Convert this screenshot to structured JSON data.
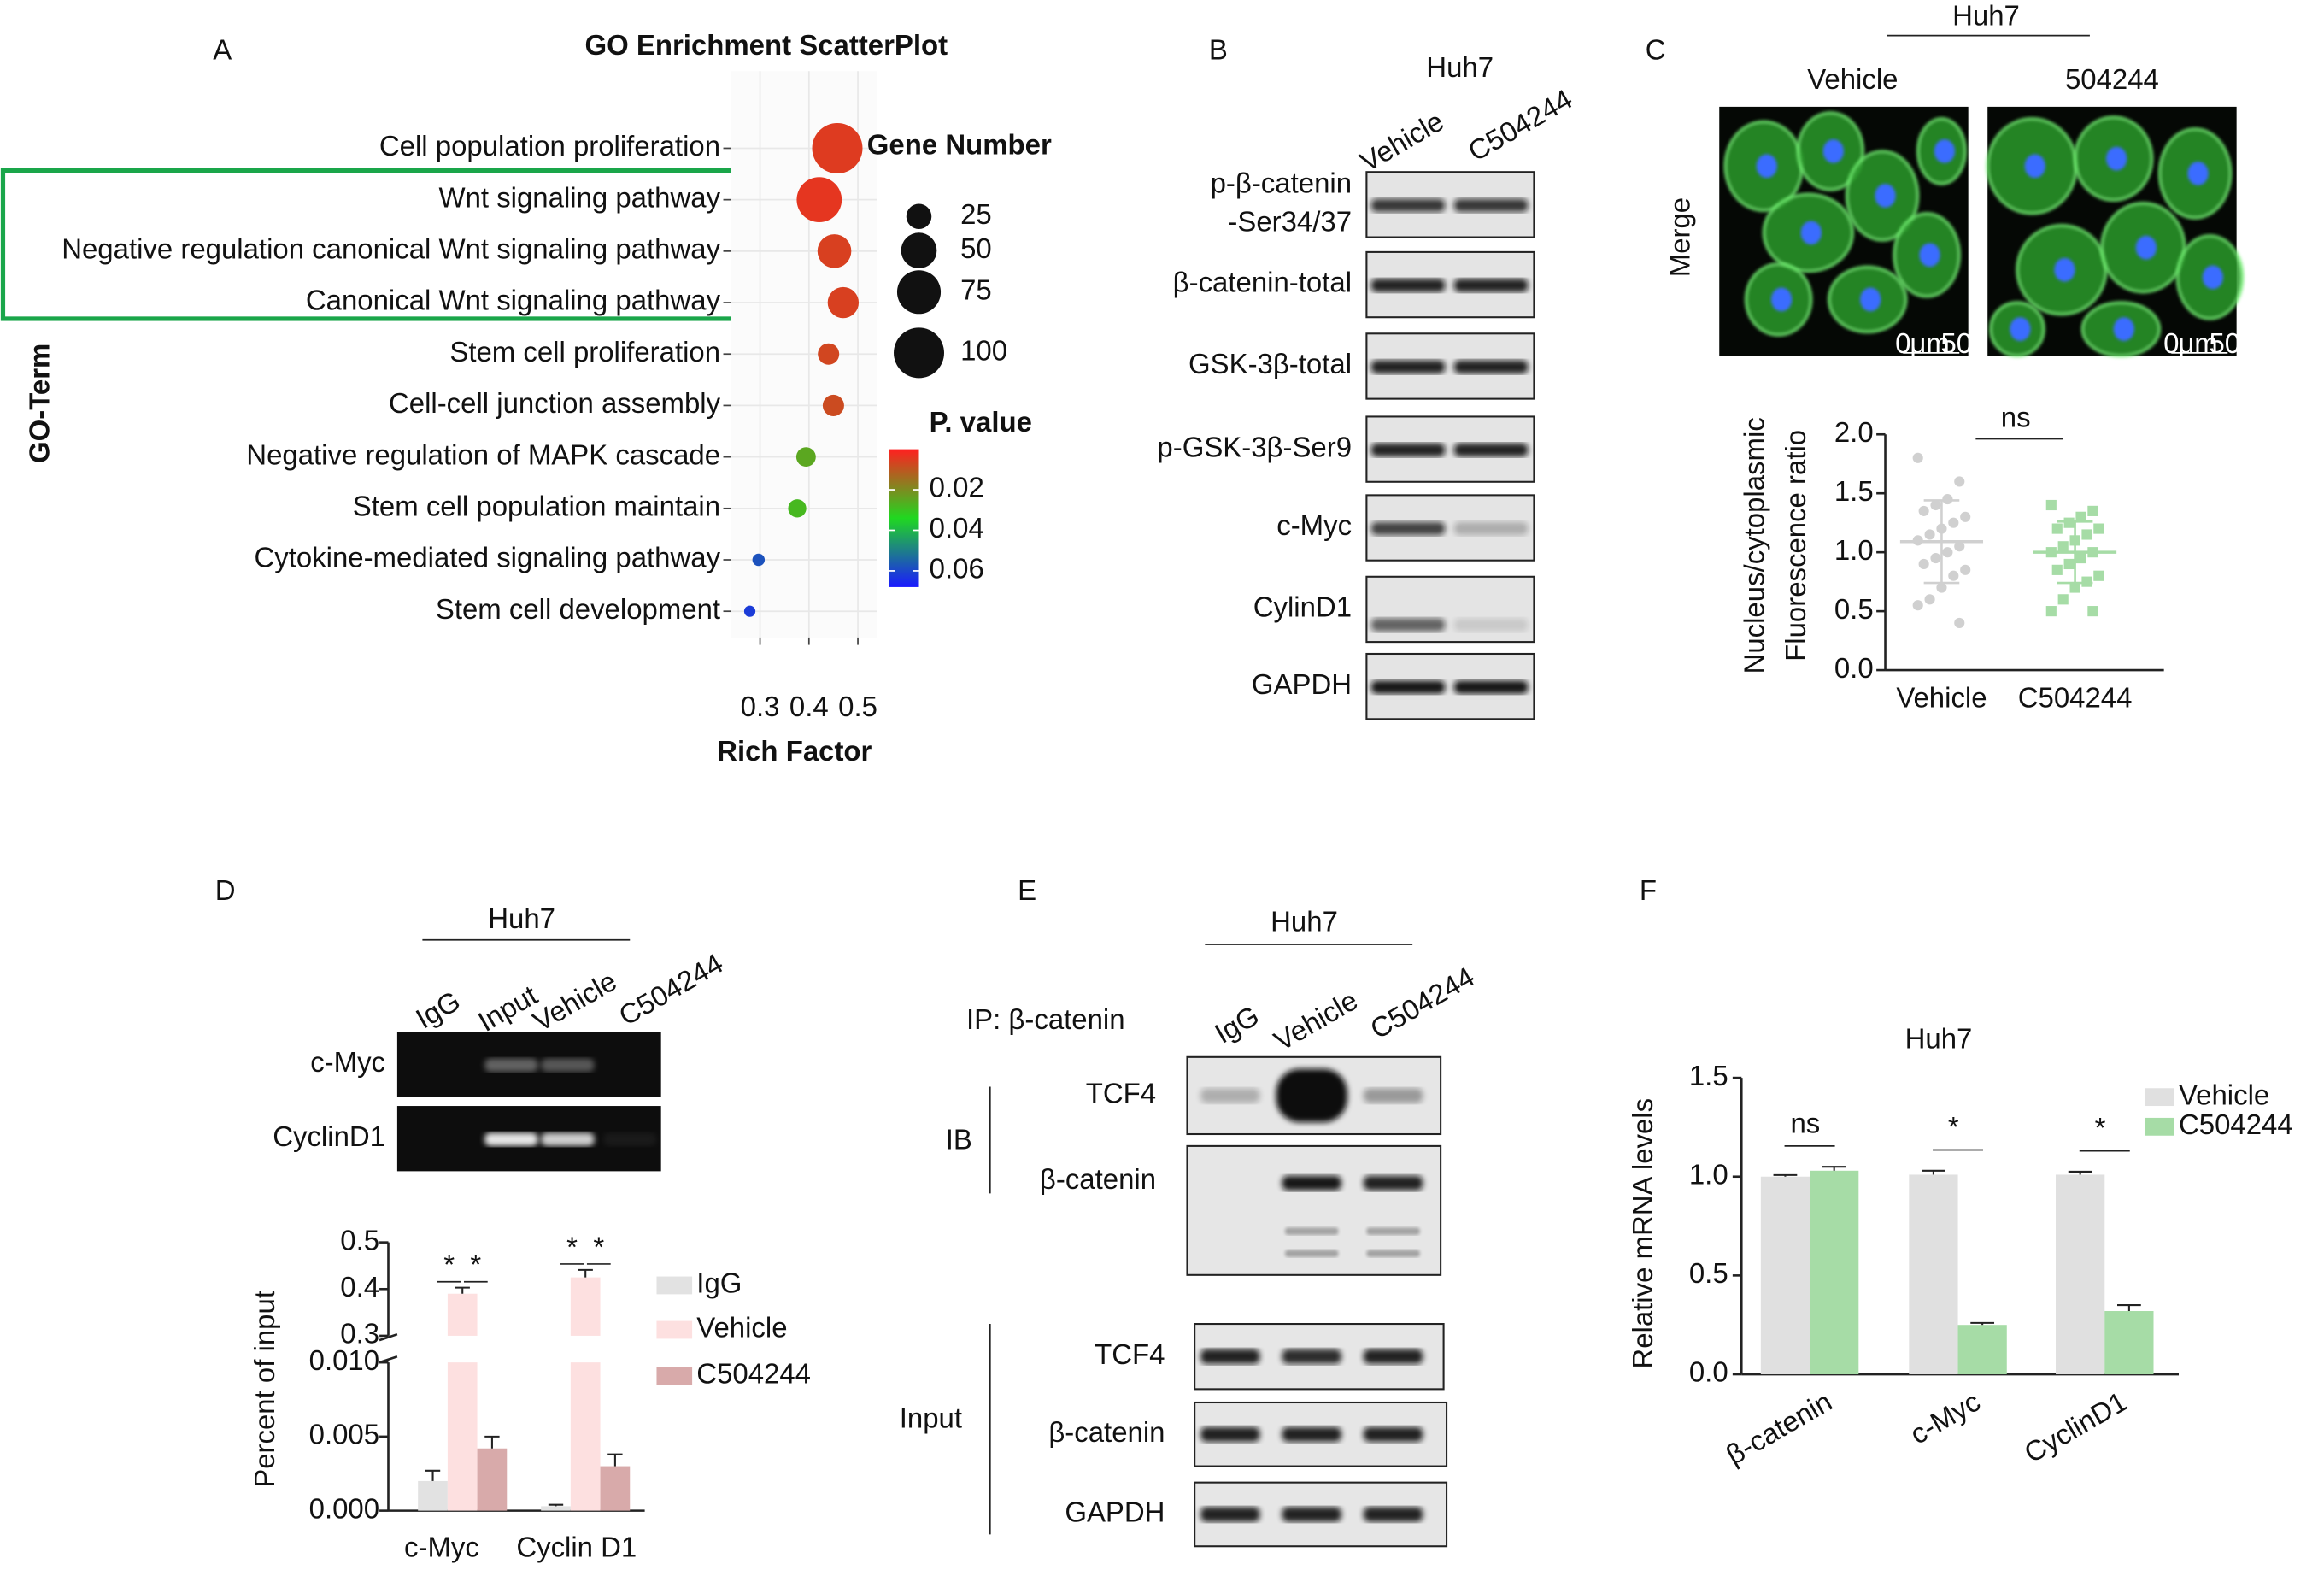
{
  "panel_labels": [
    "A",
    "B",
    "C",
    "D",
    "E",
    "F"
  ],
  "chart_data": [
    {
      "type": "scatter",
      "title": "GO Enrichment ScatterPlot",
      "x_label": "Rich Factor",
      "y_label": "GO-Term",
      "categories": [
        "Cell population proliferation",
        "Wnt signaling pathway",
        "Negative regulation canonical Wnt signaling pathway",
        "Canonical Wnt signaling pathway",
        "Stem cell proliferation",
        "Cell-cell junction assembly",
        "Negative regulation of MAPK cascade",
        "Stem cell population maintain",
        "Cytokine-mediated signaling pathway",
        "Stem cell development"
      ],
      "x": [
        0.458,
        0.421,
        0.452,
        0.47,
        0.44,
        0.45,
        0.394,
        0.376,
        0.297,
        0.279
      ],
      "sizes": [
        100,
        80,
        45,
        38,
        18,
        18,
        15,
        13,
        6,
        5
      ],
      "p_values": [
        0.005,
        0.004,
        0.006,
        0.006,
        0.007,
        0.008,
        0.025,
        0.028,
        0.058,
        0.062
      ],
      "xlim": [
        0.24,
        0.54
      ],
      "xticks": [
        0.3,
        0.4,
        0.5
      ],
      "grid": true,
      "size_legend": {
        "title": "Gene Number",
        "values": [
          25,
          50,
          75,
          100
        ]
      },
      "color_legend": {
        "title": "P. value",
        "clim": [
          0,
          0.068
        ],
        "ticks": [
          0.02,
          0.04,
          0.06
        ],
        "colors": [
          "#ff2020",
          "#20d820",
          "#1a1aff"
        ]
      }
    },
    {
      "type": "dot",
      "y_label": [
        "Nucleus/cytoplasmic",
        "Fluorescence ratio"
      ],
      "categories": [
        "Vehicle",
        "C504244"
      ],
      "colors": [
        "#d0d0d0",
        "#a6dca6"
      ],
      "points": [
        [
          1.8,
          1.6,
          1.45,
          1.4,
          1.35,
          1.3,
          1.25,
          1.2,
          1.15,
          1.1,
          1.05,
          1.0,
          0.95,
          0.9,
          0.85,
          0.8,
          0.7,
          0.6,
          0.55,
          0.4
        ],
        [
          1.4,
          1.35,
          1.3,
          1.25,
          1.2,
          1.2,
          1.15,
          1.1,
          1.05,
          1.0,
          1.0,
          0.95,
          0.9,
          0.85,
          0.8,
          0.75,
          0.7,
          0.6,
          0.5,
          0.5
        ]
      ],
      "means": [
        1.09,
        1.0
      ],
      "sd": [
        0.35,
        0.26
      ],
      "annotation": "ns",
      "ylim": [
        0,
        2
      ],
      "yticks": [
        {
          "value": 0,
          "label": "0.0"
        },
        {
          "value": 0.5,
          "label": "0.5"
        },
        {
          "value": 1,
          "label": "1.0"
        },
        {
          "value": 1.5,
          "label": "1.5"
        },
        {
          "value": 2,
          "label": "2.0"
        }
      ]
    },
    {
      "type": "broken_bar",
      "y_label": "Percent of input",
      "categories": [
        "c-Myc",
        "Cyclin D1"
      ],
      "series": [
        {
          "name": "IgG",
          "color": "#e2e2e2",
          "values": [
            0.002,
            0.0003
          ],
          "errors": [
            0.0007,
            0.0001
          ]
        },
        {
          "name": "Vehicle",
          "color": "#fde0e0",
          "values": [
            0.39,
            0.425
          ],
          "errors": [
            0.013,
            0.016
          ]
        },
        {
          "name": "C504244",
          "color": "#d8aaaa",
          "values": [
            0.0042,
            0.003
          ],
          "errors": [
            0.0008,
            0.0008
          ]
        }
      ],
      "significance": [
        [
          "*",
          "*"
        ],
        [
          "*",
          "*"
        ]
      ],
      "ylim": [
        0,
        0.01
      ],
      "yticks": [
        {
          "value": 0,
          "label": "0.000"
        },
        {
          "value": 0.005,
          "label": "0.005"
        },
        {
          "value": 0.01,
          "label": "0.010"
        }
      ],
      "y2lim": [
        0.3,
        0.5
      ],
      "y2ticks": [
        0.3,
        0.4,
        0.5
      ]
    },
    {
      "type": "bar",
      "title": "Huh7",
      "y_label": "Relative mRNA levels",
      "categories": [
        "β-catenin",
        "c-Myc",
        "CyclinD1"
      ],
      "series": [
        {
          "name": "Vehicle",
          "color": "#e0e0e0",
          "values": [
            1.0,
            1.01,
            1.01
          ],
          "errors": [
            0.008,
            0.02,
            0.015
          ]
        },
        {
          "name": "C504244",
          "color": "#a6dca6",
          "values": [
            1.03,
            0.25,
            0.32
          ],
          "errors": [
            0.02,
            0.01,
            0.03
          ]
        }
      ],
      "significance": [
        "ns",
        "*",
        "*"
      ],
      "ylim": [
        0,
        1.5
      ],
      "yticks": [
        {
          "value": 0,
          "label": "0.0"
        },
        {
          "value": 0.5,
          "label": "0.5"
        },
        {
          "value": 1,
          "label": "1.0"
        },
        {
          "value": 1.5,
          "label": "1.5"
        }
      ]
    }
  ],
  "blot_b": {
    "title": "Huh7",
    "lanes": [
      "Vehicle",
      "C504244"
    ],
    "rows": [
      [
        "p-β-catenin",
        "-Ser34/37"
      ],
      [
        "β-catenin-total"
      ],
      [
        "GSK-3β-total"
      ],
      [
        "p-GSK-3β-Ser9"
      ],
      [
        "c-Myc"
      ],
      [
        "CylinD1"
      ],
      [
        "GAPDH"
      ]
    ]
  },
  "image_c": {
    "title": "Huh7",
    "columns": [
      "Vehicle",
      "504244"
    ],
    "row": "Merge",
    "scale_bar": [
      "0",
      "μm",
      "50"
    ]
  },
  "gel_d": {
    "title": "Huh7",
    "lanes": [
      "IgG",
      "Input",
      "Vehicle",
      "C504244"
    ],
    "rows": [
      "c-Myc",
      "CyclinD1"
    ]
  },
  "blot_e": {
    "title": "Huh7",
    "ip": "IP: β-catenin",
    "lanes": [
      "IgG",
      "Vehicle",
      "C504244"
    ],
    "groups": [
      {
        "name": "IB",
        "rows": [
          "TCF4",
          "β-catenin"
        ]
      },
      {
        "name": "Input",
        "rows": [
          "TCF4",
          "β-catenin",
          "GAPDH"
        ]
      }
    ]
  }
}
